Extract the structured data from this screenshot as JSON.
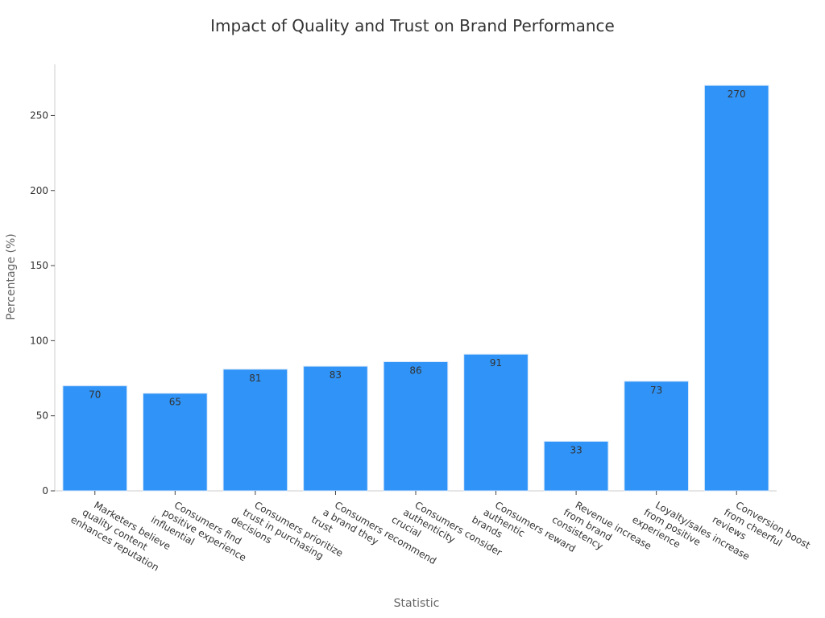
{
  "chart_data": {
    "type": "bar",
    "title": "Impact of Quality and Trust on Brand Performance",
    "xlabel": "Statistic",
    "ylabel": "Percentage (%)",
    "categories": [
      [
        "Marketers believe",
        "quality content",
        "enhances reputation"
      ],
      [
        "Consumers find",
        "positive experience",
        "influential"
      ],
      [
        "Consumers prioritize",
        "trust in purchasing",
        "decisions"
      ],
      [
        "Consumers recommend",
        "a brand they",
        "trust"
      ],
      [
        "Consumers consider",
        "authenticity",
        "crucial"
      ],
      [
        "Consumers reward",
        "authentic",
        "brands"
      ],
      [
        "Revenue increase",
        "from brand",
        "consistency"
      ],
      [
        "Loyalty/sales increase",
        "from positive",
        "experience"
      ],
      [
        "Conversion boost",
        "from cheerful",
        "reviews"
      ]
    ],
    "values": [
      70,
      65,
      81,
      83,
      86,
      91,
      33,
      73,
      270
    ],
    "ylim": [
      0,
      284
    ],
    "yticks": [
      0,
      50,
      100,
      150,
      200,
      250
    ],
    "bar_color": "#2f93f7",
    "grid": false,
    "legend": "none"
  }
}
